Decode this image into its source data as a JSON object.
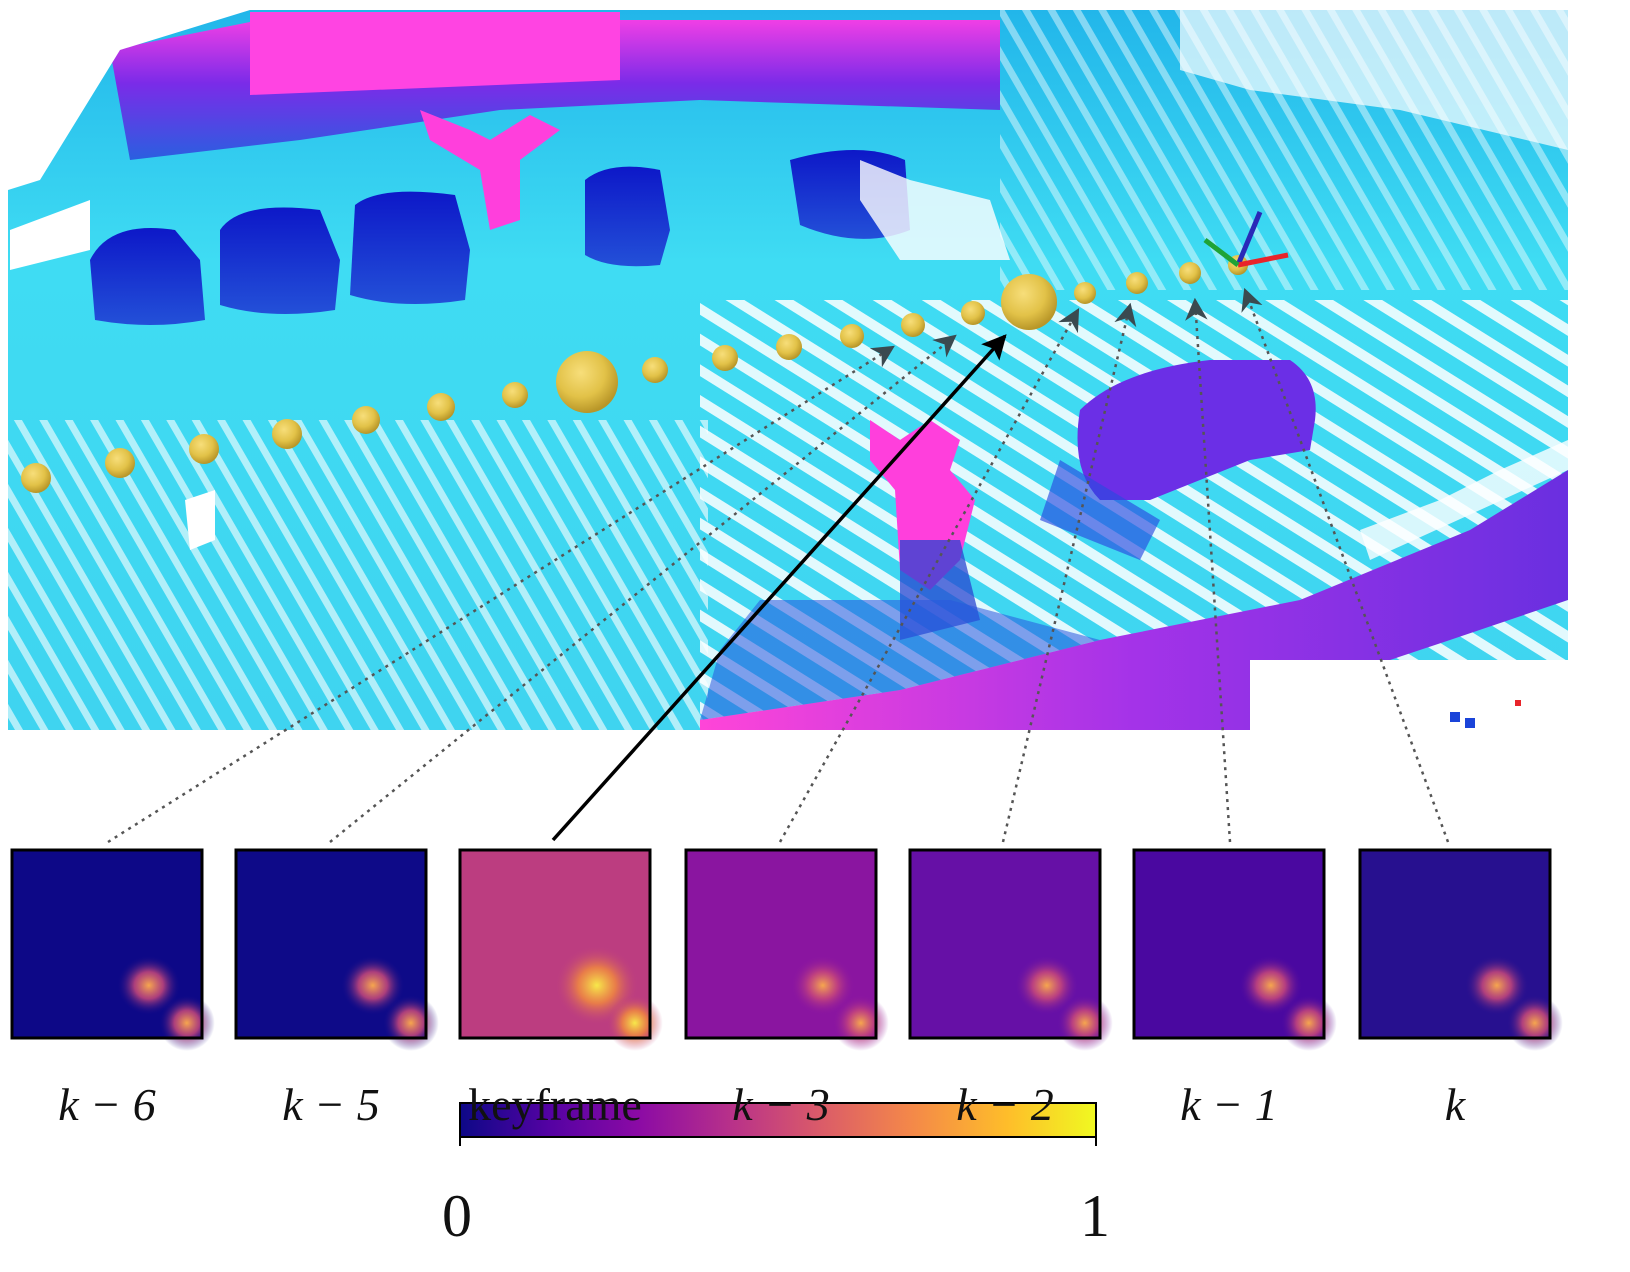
{
  "figure": {
    "panels": [
      {
        "label": "k − 6",
        "math": true
      },
      {
        "label": "k − 5",
        "math": true
      },
      {
        "label": "keyframe",
        "math": false
      },
      {
        "label": "k − 3",
        "math": true
      },
      {
        "label": "k − 2",
        "math": true
      },
      {
        "label": "k − 1",
        "math": true
      },
      {
        "label": "k",
        "math": true
      }
    ],
    "colorbar": {
      "min_label": "0",
      "max_label": "1",
      "stops": [
        "#0d0887",
        "#5402a3",
        "#8b0aa5",
        "#b93289",
        "#db5c68",
        "#f48849",
        "#febd2a",
        "#f0f921"
      ]
    },
    "point_cloud_colors": {
      "ground": "#33d6f2",
      "mid": "#1a44d9",
      "high": "#ff3fdc"
    },
    "trajectory_color": "#e2c248",
    "axis_colors": {
      "x": "#e8242a",
      "y": "#1fa336",
      "z": "#2929b8"
    }
  }
}
